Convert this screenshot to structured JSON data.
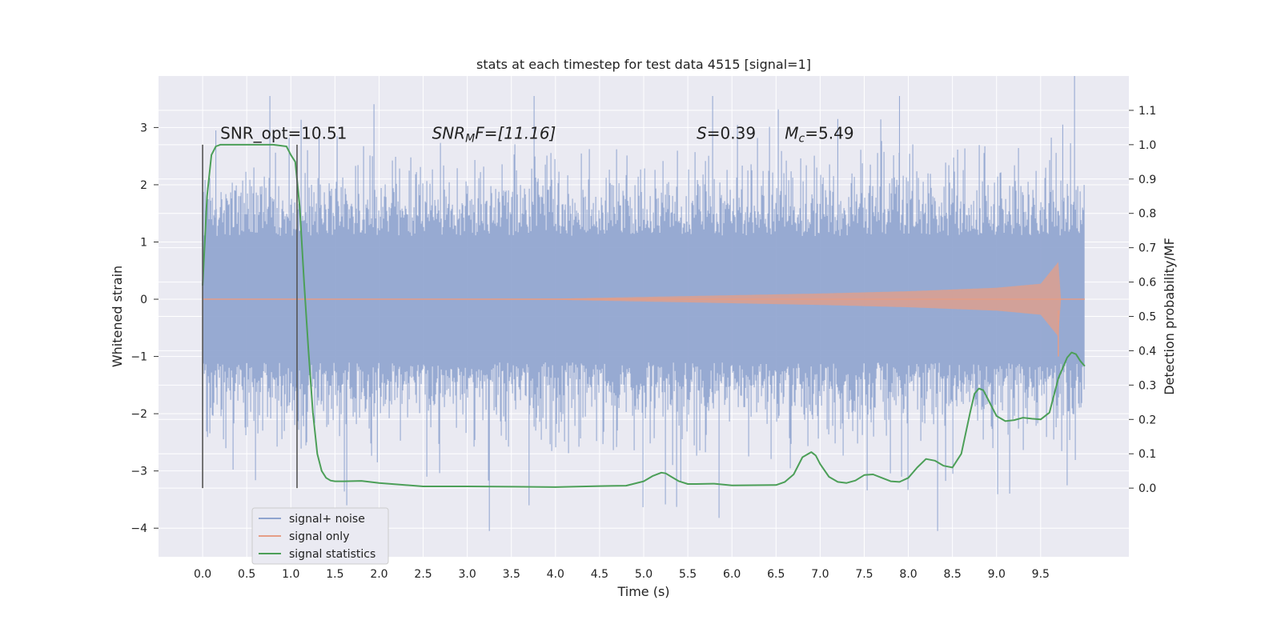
{
  "chart_data": {
    "type": "line",
    "title": "stats at each timestep for test data 4515 [signal=1]",
    "xlabel": "Time (s)",
    "ylabel_left": "Whitened strain",
    "ylabel_right": "Detection probability/MF",
    "xlim": [
      -0.5,
      10.5
    ],
    "ylim_left": [
      -4.5,
      3.9
    ],
    "ylim_right": [
      -0.2,
      1.2
    ],
    "xticks": [
      "0.0",
      "0.5",
      "1.0",
      "1.5",
      "2.0",
      "2.5",
      "3.0",
      "3.5",
      "4.0",
      "4.5",
      "5.0",
      "5.5",
      "6.0",
      "6.5",
      "7.0",
      "7.5",
      "8.0",
      "8.5",
      "9.0",
      "9.5"
    ],
    "yticks_left": [
      "3",
      "2",
      "1",
      "0",
      "−1",
      "−2",
      "−3",
      "−4"
    ],
    "yticks_right": [
      "1.1",
      "1.0",
      "0.9",
      "0.8",
      "0.7",
      "0.6",
      "0.5",
      "0.4",
      "0.3",
      "0.2",
      "0.1",
      "0.0"
    ],
    "grid": true,
    "legend_position": "lower-left",
    "annotations": {
      "snr_opt": "SNR_opt=10.51",
      "snr_mf_base": "SNR",
      "snr_mf_sub": "M",
      "snr_mf_rest": "F=[11.16]",
      "s_base": "S",
      "s_rest": "=0.39",
      "mc_base": "M",
      "mc_sub": "c",
      "mc_rest": "=5.49"
    },
    "vlines_x": [
      0.0,
      1.07
    ],
    "series": [
      {
        "name": "signal+ noise",
        "color": "#8fa4cf",
        "envelope": {
          "typical_amplitude": 1.3,
          "peak_max": 3.55,
          "peak_min": -4.05,
          "x_range": [
            0.0,
            10.0
          ]
        }
      },
      {
        "name": "signal only",
        "color": "#e59d86",
        "chirp_envelope": {
          "x": [
            0.0,
            4.0,
            5.0,
            6.0,
            7.0,
            8.0,
            9.0,
            9.5,
            9.7,
            9.73,
            10.0
          ],
          "amp": [
            0.0,
            0.01,
            0.04,
            0.07,
            0.1,
            0.14,
            0.2,
            0.27,
            0.65,
            0.0,
            0.0
          ]
        }
      },
      {
        "name": "signal statistics",
        "color": "#4c9f58",
        "x": [
          0.0,
          0.05,
          0.1,
          0.15,
          0.2,
          0.3,
          0.5,
          0.8,
          0.95,
          1.0,
          1.05,
          1.1,
          1.15,
          1.2,
          1.25,
          1.3,
          1.35,
          1.4,
          1.45,
          1.5,
          1.6,
          1.8,
          2.0,
          2.5,
          3.0,
          3.5,
          4.0,
          4.5,
          4.8,
          5.0,
          5.1,
          5.2,
          5.25,
          5.3,
          5.4,
          5.5,
          5.6,
          5.8,
          6.0,
          6.5,
          6.6,
          6.7,
          6.8,
          6.9,
          6.95,
          7.0,
          7.1,
          7.2,
          7.3,
          7.4,
          7.5,
          7.6,
          7.7,
          7.8,
          7.9,
          8.0,
          8.1,
          8.2,
          8.3,
          8.4,
          8.5,
          8.6,
          8.7,
          8.75,
          8.8,
          8.85,
          8.9,
          9.0,
          9.1,
          9.2,
          9.3,
          9.4,
          9.5,
          9.6,
          9.7,
          9.8,
          9.85,
          9.9,
          9.95,
          10.0
        ],
        "y": [
          0.59,
          0.85,
          0.97,
          0.995,
          1.0,
          1.0,
          1.0,
          1.0,
          0.995,
          0.97,
          0.95,
          0.82,
          0.6,
          0.4,
          0.22,
          0.1,
          0.05,
          0.03,
          0.022,
          0.02,
          0.02,
          0.021,
          0.015,
          0.005,
          0.005,
          0.004,
          0.003,
          0.006,
          0.007,
          0.02,
          0.035,
          0.045,
          0.043,
          0.035,
          0.02,
          0.012,
          0.012,
          0.013,
          0.008,
          0.009,
          0.018,
          0.04,
          0.09,
          0.105,
          0.095,
          0.07,
          0.033,
          0.018,
          0.015,
          0.022,
          0.038,
          0.04,
          0.03,
          0.02,
          0.018,
          0.03,
          0.06,
          0.085,
          0.08,
          0.065,
          0.06,
          0.1,
          0.22,
          0.275,
          0.29,
          0.285,
          0.26,
          0.21,
          0.195,
          0.198,
          0.205,
          0.202,
          0.2,
          0.22,
          0.32,
          0.38,
          0.395,
          0.39,
          0.37,
          0.355
        ]
      }
    ]
  }
}
